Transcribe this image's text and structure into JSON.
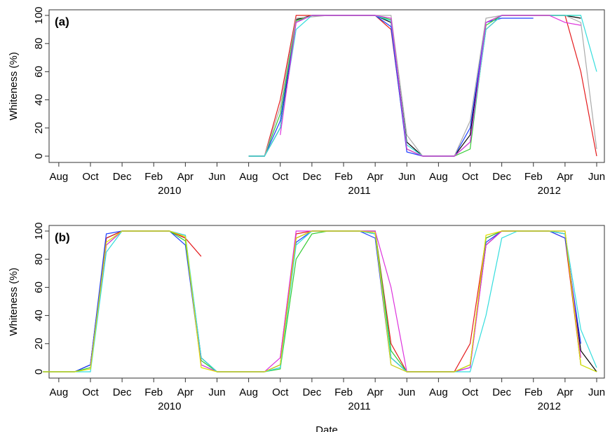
{
  "chart_data": [
    {
      "type": "line",
      "label": "(a)",
      "y_label": "Whiteness (%)",
      "x": [
        "2010-08",
        "2010-09",
        "2010-10",
        "2010-11",
        "2010-12",
        "2011-01",
        "2011-02",
        "2011-03",
        "2011-04",
        "2011-05",
        "2011-06",
        "2011-07",
        "2011-08",
        "2011-09",
        "2011-10",
        "2011-11",
        "2011-12",
        "2012-01",
        "2012-02",
        "2012-03",
        "2012-04",
        "2012-05",
        "2012-06"
      ],
      "series": [
        {
          "color": "#000000",
          "values": [
            0,
            0,
            20,
            97,
            100,
            100,
            100,
            100,
            100,
            95,
            10,
            0,
            0,
            0,
            15,
            95,
            100,
            100,
            100,
            100,
            100,
            98,
            null
          ]
        },
        {
          "color": "#e41a1c",
          "values": [
            0,
            0,
            40,
            100,
            100,
            100,
            100,
            100,
            100,
            90,
            5,
            0,
            0,
            0,
            10,
            90,
            100,
            100,
            100,
            100,
            100,
            60,
            0
          ]
        },
        {
          "color": "#1f3fff",
          "values": [
            0,
            0,
            25,
            95,
            100,
            100,
            100,
            100,
            100,
            92,
            3,
            0,
            0,
            0,
            20,
            95,
            98,
            98,
            98,
            null,
            null,
            null,
            null
          ]
        },
        {
          "color": "#33cc33",
          "values": [
            0,
            0,
            30,
            96,
            100,
            100,
            100,
            100,
            100,
            97,
            5,
            0,
            0,
            0,
            5,
            93,
            100,
            100,
            100,
            100,
            100,
            100,
            null
          ]
        },
        {
          "color": "#aaaaaa",
          "values": [
            0,
            0,
            35,
            98,
            99,
            100,
            100,
            100,
            100,
            100,
            15,
            0,
            0,
            0,
            25,
            98,
            100,
            100,
            100,
            100,
            100,
            95,
            5
          ]
        },
        {
          "color": "#33dddd",
          "values": [
            0,
            0,
            20,
            90,
            100,
            100,
            100,
            100,
            100,
            96,
            8,
            0,
            0,
            0,
            10,
            90,
            100,
            100,
            100,
            100,
            100,
            100,
            60
          ]
        },
        {
          "color": "#dd33dd",
          "values": [
            null,
            null,
            15,
            95,
            100,
            100,
            100,
            100,
            100,
            98,
            5,
            0,
            0,
            0,
            10,
            95,
            100,
            100,
            100,
            100,
            95,
            93,
            null
          ]
        }
      ],
      "xlim": [
        "2009-07",
        "2012-06"
      ],
      "ylim": [
        0,
        100
      ],
      "yticks": [
        0,
        20,
        40,
        60,
        80,
        100
      ],
      "xticks": [
        {
          "value": "2009-08",
          "label": "Aug"
        },
        {
          "value": "2009-10",
          "label": "Oct"
        },
        {
          "value": "2009-12",
          "label": "Dec"
        },
        {
          "value": "2010-02",
          "label": "Feb"
        },
        {
          "value": "2010-04",
          "label": "Apr"
        },
        {
          "value": "2010-06",
          "label": "Jun"
        },
        {
          "value": "2010-08",
          "label": "Aug"
        },
        {
          "value": "2010-10",
          "label": "Oct"
        },
        {
          "value": "2010-12",
          "label": "Dec"
        },
        {
          "value": "2011-02",
          "label": "Feb"
        },
        {
          "value": "2011-04",
          "label": "Apr"
        },
        {
          "value": "2011-06",
          "label": "Jun"
        },
        {
          "value": "2011-08",
          "label": "Aug"
        },
        {
          "value": "2011-10",
          "label": "Oct"
        },
        {
          "value": "2011-12",
          "label": "Dec"
        },
        {
          "value": "2012-02",
          "label": "Feb"
        },
        {
          "value": "2012-04",
          "label": "Apr"
        },
        {
          "value": "2012-06",
          "label": "Jun"
        }
      ],
      "year_labels": [
        {
          "value": "2010-03",
          "label": "2010"
        },
        {
          "value": "2011-03",
          "label": "2011"
        },
        {
          "value": "2012-03",
          "label": "2012"
        }
      ]
    },
    {
      "type": "line",
      "label": "(b)",
      "y_label": "Whiteness (%)",
      "x_label": "Date",
      "x": [
        "2009-07",
        "2009-08",
        "2009-09",
        "2009-10",
        "2009-11",
        "2009-12",
        "2010-01",
        "2010-02",
        "2010-03",
        "2010-04",
        "2010-05",
        "2010-06",
        "2010-07",
        "2010-08",
        "2010-09",
        "2010-10",
        "2010-11",
        "2010-12",
        "2011-01",
        "2011-02",
        "2011-03",
        "2011-04",
        "2011-05",
        "2011-06",
        "2011-07",
        "2011-08",
        "2011-09",
        "2011-10",
        "2011-11",
        "2011-12",
        "2012-01",
        "2012-02",
        "2012-03",
        "2012-04",
        "2012-05",
        "2012-06"
      ],
      "series": [
        {
          "color": "#000000",
          "values": [
            0,
            0,
            0,
            5,
            95,
            100,
            100,
            100,
            100,
            95,
            10,
            0,
            0,
            0,
            0,
            5,
            95,
            100,
            100,
            100,
            100,
            98,
            10,
            0,
            0,
            0,
            0,
            5,
            90,
            100,
            100,
            100,
            100,
            98,
            15,
            0
          ]
        },
        {
          "color": "#e41a1c",
          "values": [
            null,
            null,
            null,
            5,
            95,
            100,
            100,
            100,
            100,
            95,
            82,
            null,
            null,
            null,
            null,
            10,
            98,
            100,
            100,
            100,
            100,
            100,
            20,
            0,
            0,
            0,
            0,
            20,
            95,
            100,
            100,
            100,
            100,
            95,
            5,
            null
          ]
        },
        {
          "color": "#1f3fff",
          "values": [
            0,
            0,
            0,
            5,
            98,
            100,
            100,
            100,
            100,
            90,
            5,
            0,
            0,
            0,
            0,
            5,
            92,
            100,
            100,
            100,
            100,
            95,
            5,
            0,
            0,
            0,
            0,
            3,
            92,
            100,
            100,
            100,
            100,
            95,
            20,
            null
          ]
        },
        {
          "color": "#33cc33",
          "values": [
            0,
            0,
            0,
            3,
            90,
            100,
            100,
            100,
            100,
            93,
            8,
            0,
            0,
            0,
            0,
            2,
            80,
            98,
            100,
            100,
            100,
            100,
            15,
            0,
            0,
            0,
            0,
            5,
            95,
            100,
            100,
            100,
            100,
            100,
            5,
            0
          ]
        },
        {
          "color": "#dd33dd",
          "values": [
            null,
            null,
            null,
            3,
            90,
            100,
            100,
            100,
            100,
            97,
            5,
            0,
            0,
            0,
            0,
            10,
            100,
            100,
            100,
            100,
            100,
            100,
            60,
            0,
            0,
            0,
            0,
            3,
            90,
            100,
            100,
            100,
            100,
            100,
            10,
            null
          ]
        },
        {
          "color": "#33dddd",
          "values": [
            0,
            0,
            0,
            0,
            85,
            100,
            100,
            100,
            100,
            97,
            10,
            0,
            0,
            0,
            0,
            3,
            90,
            100,
            100,
            100,
            100,
            98,
            10,
            0,
            0,
            0,
            0,
            0,
            40,
            95,
            100,
            100,
            100,
            98,
            30,
            3
          ]
        },
        {
          "color": "#e0e000",
          "values": [
            0,
            0,
            0,
            2,
            92,
            100,
            100,
            100,
            100,
            96,
            3,
            0,
            0,
            0,
            0,
            5,
            95,
            100,
            100,
            100,
            100,
            99,
            5,
            0,
            0,
            0,
            0,
            5,
            97,
            100,
            100,
            100,
            100,
            100,
            5,
            0
          ]
        }
      ],
      "xlim": [
        "2009-07",
        "2012-06"
      ],
      "ylim": [
        0,
        100
      ],
      "yticks": [
        0,
        20,
        40,
        60,
        80,
        100
      ],
      "xticks": [
        {
          "value": "2009-08",
          "label": "Aug"
        },
        {
          "value": "2009-10",
          "label": "Oct"
        },
        {
          "value": "2009-12",
          "label": "Dec"
        },
        {
          "value": "2010-02",
          "label": "Feb"
        },
        {
          "value": "2010-04",
          "label": "Apr"
        },
        {
          "value": "2010-06",
          "label": "Jun"
        },
        {
          "value": "2010-08",
          "label": "Aug"
        },
        {
          "value": "2010-10",
          "label": "Oct"
        },
        {
          "value": "2010-12",
          "label": "Dec"
        },
        {
          "value": "2011-02",
          "label": "Feb"
        },
        {
          "value": "2011-04",
          "label": "Apr"
        },
        {
          "value": "2011-06",
          "label": "Jun"
        },
        {
          "value": "2011-08",
          "label": "Aug"
        },
        {
          "value": "2011-10",
          "label": "Oct"
        },
        {
          "value": "2011-12",
          "label": "Dec"
        },
        {
          "value": "2012-02",
          "label": "Feb"
        },
        {
          "value": "2012-04",
          "label": "Apr"
        },
        {
          "value": "2012-06",
          "label": "Jun"
        }
      ],
      "year_labels": [
        {
          "value": "2010-03",
          "label": "2010"
        },
        {
          "value": "2011-03",
          "label": "2011"
        },
        {
          "value": "2012-03",
          "label": "2012"
        }
      ]
    }
  ]
}
